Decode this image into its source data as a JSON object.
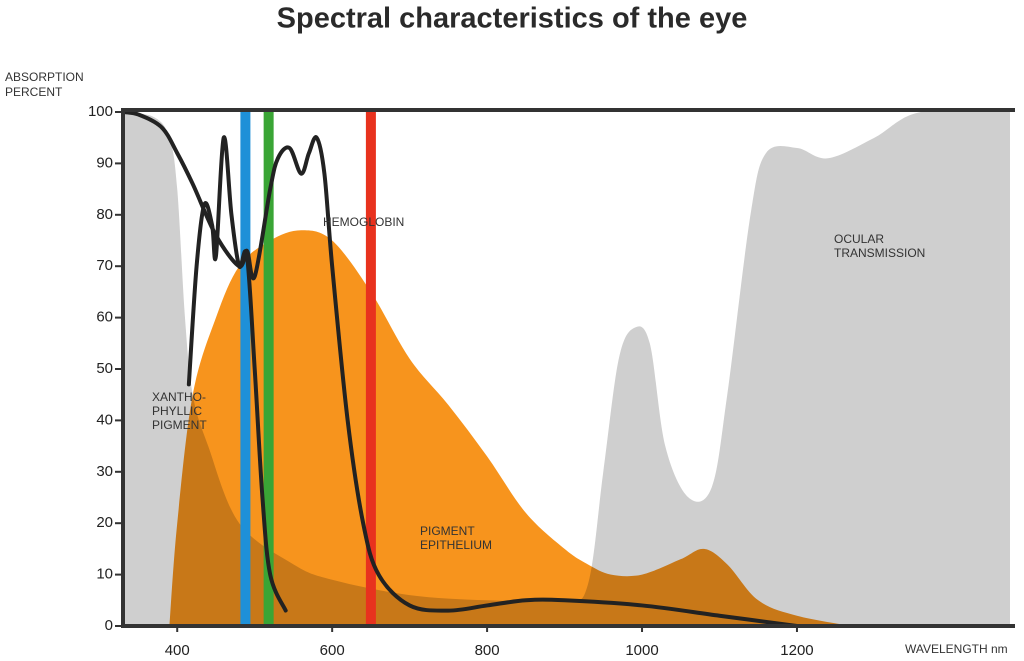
{
  "chart_data": {
    "type": "area",
    "title": "Spectral characteristics of the eye",
    "ylabel": [
      "ABSORPTION",
      "PERCENT"
    ],
    "xlabel": "WAVELENGTH nm",
    "xlim": [
      330,
      1475
    ],
    "ylim": [
      0,
      100
    ],
    "xticks": [
      400,
      600,
      800,
      1000,
      1200
    ],
    "yticks": [
      0,
      10,
      20,
      30,
      40,
      50,
      60,
      70,
      80,
      90,
      100
    ],
    "series": [
      {
        "kind": "area",
        "color": "#cfcfcf",
        "x": [
          330,
          370,
          390,
          400,
          410,
          420,
          440,
          480,
          550,
          600,
          700,
          800,
          900,
          930,
          950,
          970,
          990,
          1010,
          1030,
          1060,
          1090,
          1110,
          1140,
          1160,
          1200,
          1240,
          1300,
          1360,
          1475
        ],
        "values": [
          100,
          99,
          95,
          85,
          60,
          45,
          35,
          20,
          12,
          9,
          6,
          5,
          5,
          8,
          30,
          52,
          58,
          55,
          35,
          25,
          27,
          45,
          80,
          92,
          93,
          91,
          95,
          100,
          100
        ]
      },
      {
        "kind": "area",
        "color": "#f7941d",
        "x": [
          390,
          400,
          420,
          450,
          480,
          520,
          560,
          600,
          650,
          700,
          750,
          800,
          850,
          900,
          930,
          960,
          1000,
          1050,
          1080,
          1110,
          1150,
          1200,
          1270
        ],
        "values": [
          0,
          20,
          45,
          60,
          70,
          75,
          77,
          75,
          65,
          52,
          43,
          33,
          22,
          15,
          12,
          10,
          10,
          13,
          15,
          12,
          5,
          2,
          0
        ]
      },
      {
        "kind": "line",
        "color": "#222222",
        "x": [
          330,
          350,
          380,
          400,
          420,
          450,
          480,
          490,
          500,
          520,
          530,
          545,
          560,
          570,
          580,
          590,
          600,
          620,
          640,
          660,
          700,
          750,
          800,
          850,
          900,
          1000,
          1100,
          1200
        ],
        "values": [
          100,
          99.5,
          97,
          92,
          86,
          76,
          70,
          73,
          68,
          85,
          91,
          93,
          88,
          92,
          95,
          88,
          70,
          40,
          20,
          10,
          4,
          3,
          4,
          5,
          5,
          4,
          2,
          0
        ]
      },
      {
        "kind": "line",
        "color": "#222222",
        "x": [
          415,
          425,
          435,
          445,
          450,
          460,
          470,
          480,
          490,
          500,
          510,
          520,
          540
        ],
        "values": [
          47,
          70,
          82,
          78,
          72,
          95,
          80,
          70,
          72,
          50,
          25,
          10,
          3
        ]
      }
    ],
    "bands": [
      {
        "x": 488,
        "color": "#1e90d8"
      },
      {
        "x": 518,
        "color": "#3aa535"
      },
      {
        "x": 650,
        "color": "#e8321e"
      }
    ],
    "annotations": [
      [
        "HEMOGLOBIN"
      ],
      [
        "OCULAR",
        "TRANSMISSION"
      ],
      [
        "XANTHO-",
        "PHYLLIC",
        "PIGMENT"
      ],
      [
        "PIGMENT",
        "EPITHELIUM"
      ]
    ]
  }
}
